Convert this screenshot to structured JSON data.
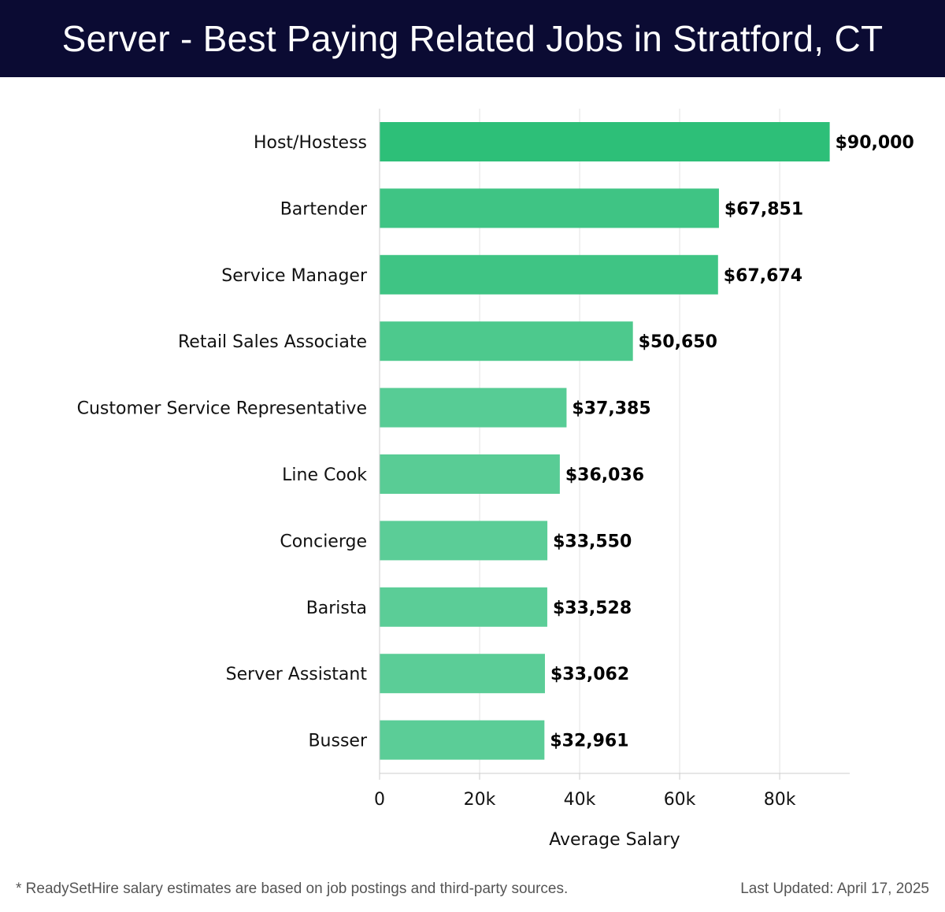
{
  "header": {
    "title": "Server - Best Paying Related Jobs in Stratford, CT"
  },
  "chart_data": {
    "type": "bar",
    "orientation": "horizontal",
    "categories": [
      "Host/Hostess",
      "Bartender",
      "Service Manager",
      "Retail Sales Associate",
      "Customer Service Representative",
      "Line Cook",
      "Concierge",
      "Barista",
      "Server Assistant",
      "Busser"
    ],
    "values": [
      90000,
      67851,
      67674,
      50650,
      37385,
      36036,
      33550,
      33528,
      33062,
      32961
    ],
    "value_labels": [
      "$90,000",
      "$67,851",
      "$67,674",
      "$50,650",
      "$37,385",
      "$36,036",
      "$33,550",
      "$33,528",
      "$33,062",
      "$32,961"
    ],
    "xlabel": "Average Salary",
    "xlim": [
      0,
      94000
    ],
    "xticks": [
      0,
      20000,
      40000,
      60000,
      80000
    ],
    "xtick_labels": [
      "0",
      "20k",
      "40k",
      "60k",
      "80k"
    ],
    "grid": "vertical",
    "colors": {
      "bar_max": "#2dbf78",
      "bar_min": "#5bcd97",
      "grid": "#e3e3e3",
      "axis": "#cccccc"
    }
  },
  "footer": {
    "note": "* ReadySetHire salary estimates are based on job postings and third-party sources.",
    "updated": "Last Updated: April 17, 2025"
  }
}
